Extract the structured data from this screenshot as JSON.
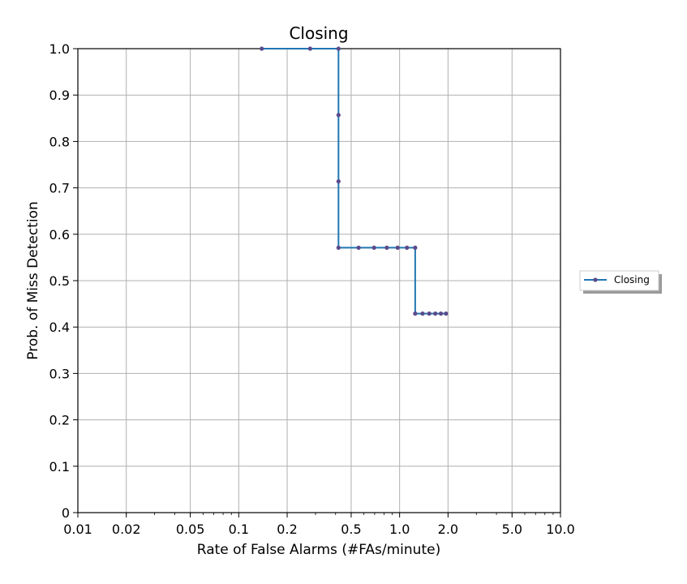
{
  "chart_data": {
    "type": "line",
    "title": "Closing",
    "xlabel": "Rate of False Alarms (#FAs/minute)",
    "ylabel": "Prob. of Miss Detection",
    "xscale": "log",
    "xlim": [
      0.01,
      10.0
    ],
    "ylim": [
      0,
      1.0
    ],
    "grid": true,
    "legend_position": "outside-right",
    "xticks": [
      0.01,
      0.02,
      0.05,
      0.1,
      0.2,
      0.5,
      1.0,
      2.0,
      5.0,
      10.0
    ],
    "xtick_labels": [
      "0.01",
      "0.02",
      "0.05",
      "0.1",
      "0.2",
      "0.5",
      "1.0",
      "2.0",
      "5.0",
      "10.0"
    ],
    "yticks": [
      0,
      0.1,
      0.2,
      0.3,
      0.4,
      0.5,
      0.6,
      0.7,
      0.8,
      0.9,
      1.0
    ],
    "ytick_labels": [
      "0",
      "0.1",
      "0.2",
      "0.3",
      "0.4",
      "0.5",
      "0.6",
      "0.7",
      "0.8",
      "0.9",
      "1.0"
    ],
    "series": [
      {
        "name": "Closing",
        "color": "#1f77b4",
        "marker_color": "#5b4a8b",
        "drawstyle": "steps-post",
        "points": [
          {
            "x": 0.139,
            "y": 1.0
          },
          {
            "x": 0.278,
            "y": 1.0
          },
          {
            "x": 0.417,
            "y": 1.0
          },
          {
            "x": 0.417,
            "y": 0.857
          },
          {
            "x": 0.417,
            "y": 0.714
          },
          {
            "x": 0.417,
            "y": 0.571
          },
          {
            "x": 0.556,
            "y": 0.571
          },
          {
            "x": 0.694,
            "y": 0.571
          },
          {
            "x": 0.833,
            "y": 0.571
          },
          {
            "x": 0.972,
            "y": 0.571
          },
          {
            "x": 1.111,
            "y": 0.571
          },
          {
            "x": 1.25,
            "y": 0.571
          },
          {
            "x": 1.25,
            "y": 0.429
          },
          {
            "x": 1.389,
            "y": 0.429
          },
          {
            "x": 1.528,
            "y": 0.429
          },
          {
            "x": 1.667,
            "y": 0.429
          },
          {
            "x": 1.806,
            "y": 0.429
          },
          {
            "x": 1.944,
            "y": 0.429
          }
        ]
      }
    ]
  }
}
